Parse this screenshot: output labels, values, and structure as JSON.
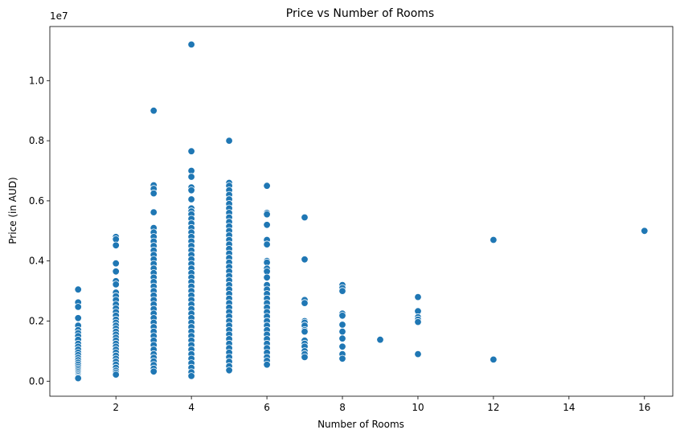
{
  "chart_data": {
    "type": "scatter",
    "title": "Price vs Number of Rooms",
    "xlabel": "Number of Rooms",
    "ylabel": "Price (in AUD)",
    "y_scale_label": "1e7",
    "xlim": [
      0.25,
      16.75
    ],
    "ylim": [
      -500000,
      11800000
    ],
    "x_ticks": [
      2,
      4,
      6,
      8,
      10,
      12,
      14,
      16
    ],
    "y_ticks": [
      0,
      2000000,
      4000000,
      6000000,
      8000000,
      10000000
    ],
    "y_tick_labels": [
      "0.0",
      "0.2",
      "0.4",
      "0.6",
      "0.8",
      "1.0"
    ],
    "grid": false,
    "legend": "none",
    "marker_color": "#1f77b4",
    "series": [
      {
        "points": [
          [
            1,
            3050000
          ],
          [
            1,
            2620000
          ],
          [
            1,
            2470000
          ],
          [
            1,
            2100000
          ],
          [
            1,
            1850000
          ],
          [
            1,
            1700000
          ],
          [
            1,
            1600000
          ],
          [
            1,
            1500000
          ],
          [
            1,
            1380000
          ],
          [
            1,
            1250000
          ],
          [
            1,
            1150000
          ],
          [
            1,
            1050000
          ],
          [
            1,
            950000
          ],
          [
            1,
            870000
          ],
          [
            1,
            780000
          ],
          [
            1,
            700000
          ],
          [
            1,
            620000
          ],
          [
            1,
            550000
          ],
          [
            1,
            480000
          ],
          [
            1,
            420000
          ],
          [
            1,
            360000
          ],
          [
            1,
            310000
          ],
          [
            1,
            260000
          ],
          [
            1,
            210000
          ],
          [
            1,
            170000
          ],
          [
            1,
            130000
          ],
          [
            1,
            100000
          ],
          [
            2,
            4800000
          ],
          [
            2,
            4720000
          ],
          [
            2,
            4520000
          ],
          [
            2,
            3920000
          ],
          [
            2,
            3650000
          ],
          [
            2,
            3330000
          ],
          [
            2,
            3220000
          ],
          [
            2,
            2950000
          ],
          [
            2,
            2830000
          ],
          [
            2,
            2700000
          ],
          [
            2,
            2550000
          ],
          [
            2,
            2420000
          ],
          [
            2,
            2300000
          ],
          [
            2,
            2180000
          ],
          [
            2,
            2050000
          ],
          [
            2,
            1950000
          ],
          [
            2,
            1850000
          ],
          [
            2,
            1750000
          ],
          [
            2,
            1650000
          ],
          [
            2,
            1550000
          ],
          [
            2,
            1450000
          ],
          [
            2,
            1350000
          ],
          [
            2,
            1250000
          ],
          [
            2,
            1150000
          ],
          [
            2,
            1050000
          ],
          [
            2,
            950000
          ],
          [
            2,
            850000
          ],
          [
            2,
            750000
          ],
          [
            2,
            650000
          ],
          [
            2,
            550000
          ],
          [
            2,
            450000
          ],
          [
            2,
            350000
          ],
          [
            2,
            280000
          ],
          [
            2,
            220000
          ],
          [
            3,
            9000000
          ],
          [
            3,
            6520000
          ],
          [
            3,
            6400000
          ],
          [
            3,
            6250000
          ],
          [
            3,
            5620000
          ],
          [
            3,
            5100000
          ],
          [
            3,
            4950000
          ],
          [
            3,
            4800000
          ],
          [
            3,
            4650000
          ],
          [
            3,
            4500000
          ],
          [
            3,
            4350000
          ],
          [
            3,
            4200000
          ],
          [
            3,
            4050000
          ],
          [
            3,
            3900000
          ],
          [
            3,
            3750000
          ],
          [
            3,
            3600000
          ],
          [
            3,
            3450000
          ],
          [
            3,
            3300000
          ],
          [
            3,
            3150000
          ],
          [
            3,
            3000000
          ],
          [
            3,
            2850000
          ],
          [
            3,
            2700000
          ],
          [
            3,
            2550000
          ],
          [
            3,
            2400000
          ],
          [
            3,
            2250000
          ],
          [
            3,
            2100000
          ],
          [
            3,
            1950000
          ],
          [
            3,
            1800000
          ],
          [
            3,
            1650000
          ],
          [
            3,
            1500000
          ],
          [
            3,
            1350000
          ],
          [
            3,
            1200000
          ],
          [
            3,
            1050000
          ],
          [
            3,
            900000
          ],
          [
            3,
            780000
          ],
          [
            3,
            660000
          ],
          [
            3,
            540000
          ],
          [
            3,
            420000
          ],
          [
            3,
            320000
          ],
          [
            4,
            11200000
          ],
          [
            4,
            7650000
          ],
          [
            4,
            7000000
          ],
          [
            4,
            6800000
          ],
          [
            4,
            6450000
          ],
          [
            4,
            6350000
          ],
          [
            4,
            6050000
          ],
          [
            4,
            5750000
          ],
          [
            4,
            5650000
          ],
          [
            4,
            5550000
          ],
          [
            4,
            5400000
          ],
          [
            4,
            5250000
          ],
          [
            4,
            5100000
          ],
          [
            4,
            4950000
          ],
          [
            4,
            4800000
          ],
          [
            4,
            4650000
          ],
          [
            4,
            4500000
          ],
          [
            4,
            4350000
          ],
          [
            4,
            4200000
          ],
          [
            4,
            4050000
          ],
          [
            4,
            3900000
          ],
          [
            4,
            3750000
          ],
          [
            4,
            3600000
          ],
          [
            4,
            3450000
          ],
          [
            4,
            3300000
          ],
          [
            4,
            3150000
          ],
          [
            4,
            3000000
          ],
          [
            4,
            2850000
          ],
          [
            4,
            2700000
          ],
          [
            4,
            2550000
          ],
          [
            4,
            2400000
          ],
          [
            4,
            2250000
          ],
          [
            4,
            2100000
          ],
          [
            4,
            1950000
          ],
          [
            4,
            1800000
          ],
          [
            4,
            1650000
          ],
          [
            4,
            1500000
          ],
          [
            4,
            1350000
          ],
          [
            4,
            1200000
          ],
          [
            4,
            1050000
          ],
          [
            4,
            900000
          ],
          [
            4,
            750000
          ],
          [
            4,
            600000
          ],
          [
            4,
            450000
          ],
          [
            4,
            300000
          ],
          [
            4,
            170000
          ],
          [
            5,
            8000000
          ],
          [
            5,
            6600000
          ],
          [
            5,
            6500000
          ],
          [
            5,
            6350000
          ],
          [
            5,
            6200000
          ],
          [
            5,
            6050000
          ],
          [
            5,
            5900000
          ],
          [
            5,
            5750000
          ],
          [
            5,
            5600000
          ],
          [
            5,
            5450000
          ],
          [
            5,
            5300000
          ],
          [
            5,
            5150000
          ],
          [
            5,
            5000000
          ],
          [
            5,
            4850000
          ],
          [
            5,
            4700000
          ],
          [
            5,
            4550000
          ],
          [
            5,
            4400000
          ],
          [
            5,
            4250000
          ],
          [
            5,
            4100000
          ],
          [
            5,
            3950000
          ],
          [
            5,
            3800000
          ],
          [
            5,
            3650000
          ],
          [
            5,
            3500000
          ],
          [
            5,
            3350000
          ],
          [
            5,
            3200000
          ],
          [
            5,
            3050000
          ],
          [
            5,
            2900000
          ],
          [
            5,
            2750000
          ],
          [
            5,
            2600000
          ],
          [
            5,
            2450000
          ],
          [
            5,
            2300000
          ],
          [
            5,
            2150000
          ],
          [
            5,
            2000000
          ],
          [
            5,
            1850000
          ],
          [
            5,
            1700000
          ],
          [
            5,
            1550000
          ],
          [
            5,
            1400000
          ],
          [
            5,
            1250000
          ],
          [
            5,
            1100000
          ],
          [
            5,
            950000
          ],
          [
            5,
            800000
          ],
          [
            5,
            650000
          ],
          [
            5,
            500000
          ],
          [
            5,
            360000
          ],
          [
            6,
            6500000
          ],
          [
            6,
            5600000
          ],
          [
            6,
            5550000
          ],
          [
            6,
            5200000
          ],
          [
            6,
            4700000
          ],
          [
            6,
            4550000
          ],
          [
            6,
            4000000
          ],
          [
            6,
            3950000
          ],
          [
            6,
            3750000
          ],
          [
            6,
            3650000
          ],
          [
            6,
            3450000
          ],
          [
            6,
            3200000
          ],
          [
            6,
            3050000
          ],
          [
            6,
            2900000
          ],
          [
            6,
            2750000
          ],
          [
            6,
            2600000
          ],
          [
            6,
            2450000
          ],
          [
            6,
            2300000
          ],
          [
            6,
            2150000
          ],
          [
            6,
            2000000
          ],
          [
            6,
            1850000
          ],
          [
            6,
            1700000
          ],
          [
            6,
            1550000
          ],
          [
            6,
            1400000
          ],
          [
            6,
            1250000
          ],
          [
            6,
            1100000
          ],
          [
            6,
            950000
          ],
          [
            6,
            800000
          ],
          [
            6,
            680000
          ],
          [
            6,
            550000
          ],
          [
            7,
            5450000
          ],
          [
            7,
            4050000
          ],
          [
            7,
            2700000
          ],
          [
            7,
            2600000
          ],
          [
            7,
            2000000
          ],
          [
            7,
            1950000
          ],
          [
            7,
            1850000
          ],
          [
            7,
            1700000
          ],
          [
            7,
            1650000
          ],
          [
            7,
            1350000
          ],
          [
            7,
            1250000
          ],
          [
            7,
            1150000
          ],
          [
            7,
            1000000
          ],
          [
            7,
            900000
          ],
          [
            7,
            800000
          ],
          [
            8,
            3200000
          ],
          [
            8,
            3100000
          ],
          [
            8,
            3000000
          ],
          [
            8,
            2250000
          ],
          [
            8,
            2180000
          ],
          [
            8,
            1880000
          ],
          [
            8,
            1650000
          ],
          [
            8,
            1420000
          ],
          [
            8,
            1150000
          ],
          [
            8,
            900000
          ],
          [
            8,
            750000
          ],
          [
            9,
            1380000
          ],
          [
            10,
            2800000
          ],
          [
            10,
            2330000
          ],
          [
            10,
            2130000
          ],
          [
            10,
            2050000
          ],
          [
            10,
            1970000
          ],
          [
            10,
            900000
          ],
          [
            12,
            4700000
          ],
          [
            12,
            720000
          ],
          [
            16,
            5000000
          ]
        ]
      }
    ]
  }
}
